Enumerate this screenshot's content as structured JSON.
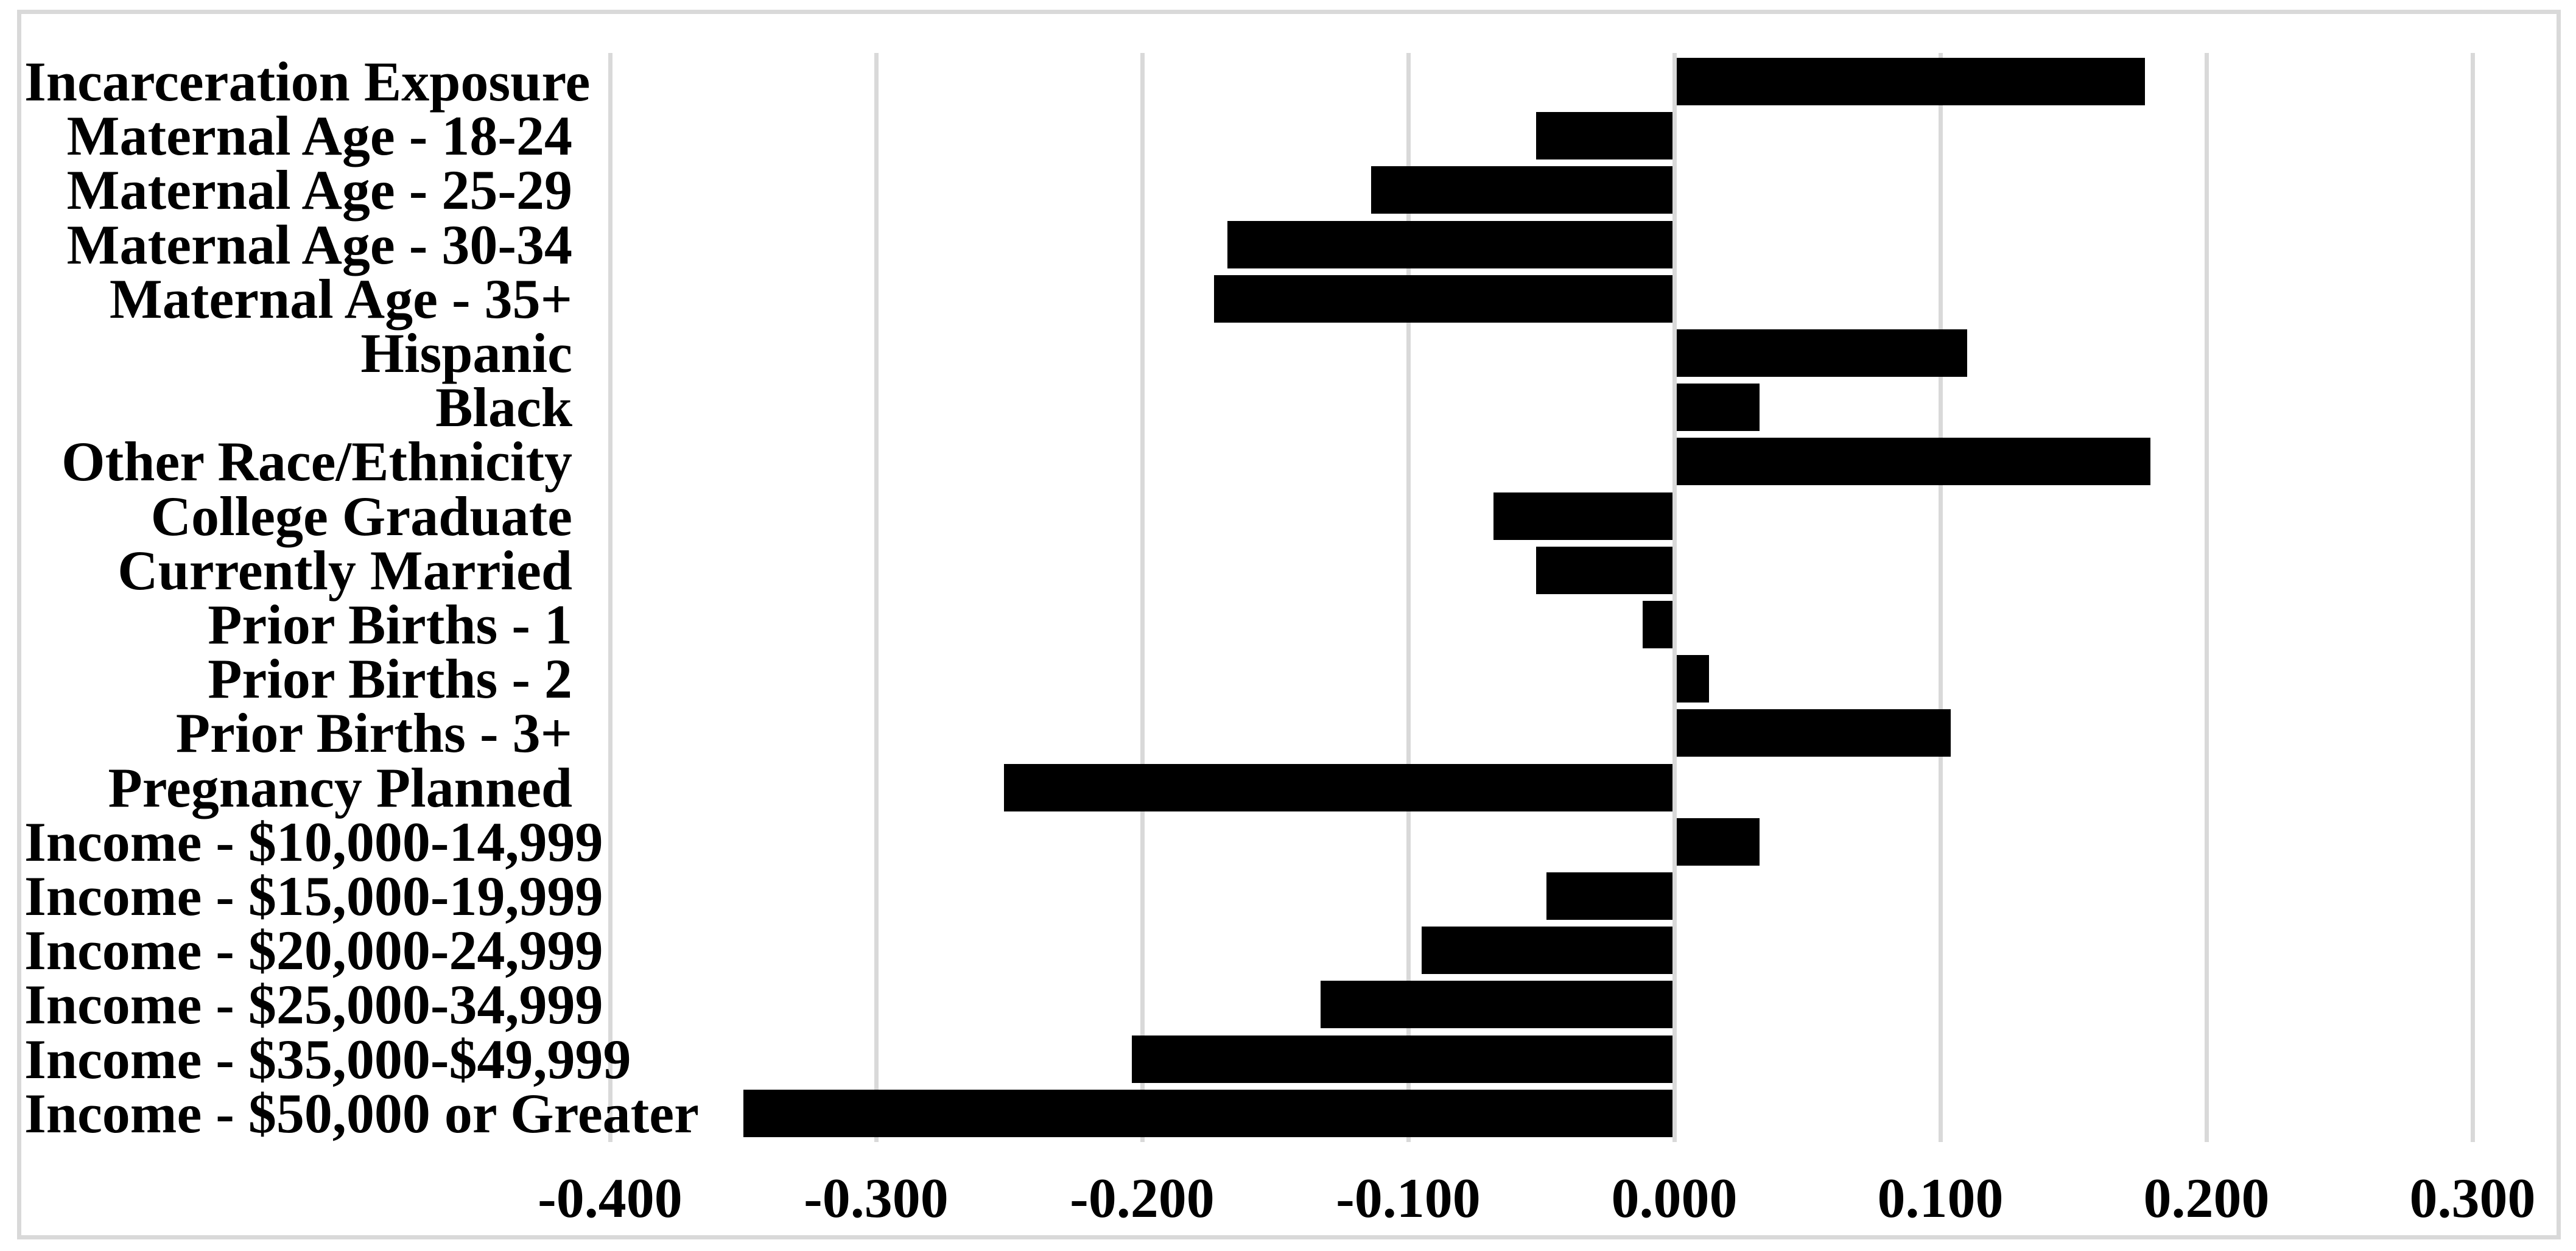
{
  "chart_data": {
    "type": "bar",
    "orientation": "horizontal",
    "title": "",
    "xlabel": "",
    "ylabel": "",
    "categories": [
      "Incarceration Exposure",
      "Maternal Age - 18-24",
      "Maternal Age - 25-29",
      "Maternal Age - 30-34",
      "Maternal Age - 35+",
      "Hispanic",
      "Black",
      "Other Race/Ethnicity",
      "College Graduate",
      "Currently Married",
      "Prior Births - 1",
      "Prior Births - 2",
      "Prior Births - 3+",
      "Pregnancy Planned",
      "Income - $10,000-14,999",
      "Income - $15,000-19,999",
      "Income - $20,000-24,999",
      "Income - $25,000-34,999",
      "Income - $35,000-$49,999",
      "Income - $50,000 or Greater"
    ],
    "values": [
      0.177,
      -0.052,
      -0.114,
      -0.168,
      -0.173,
      0.11,
      0.032,
      0.179,
      -0.068,
      -0.052,
      -0.012,
      0.013,
      0.104,
      -0.252,
      0.032,
      -0.048,
      -0.095,
      -0.133,
      -0.204,
      -0.35
    ],
    "xlim": [
      -0.4,
      0.3
    ],
    "x_tick_values": [
      -0.4,
      -0.3,
      -0.2,
      -0.1,
      0.0,
      0.1,
      0.2,
      0.3
    ],
    "x_tick_labels": [
      "-0.400",
      "-0.300",
      "-0.200",
      "-0.100",
      "0.000",
      "0.100",
      "0.200",
      "0.300"
    ],
    "grid": true,
    "legend": false,
    "colors": {
      "bar": "#000000",
      "gridline": "#d9d9d9",
      "zero_line": "#d9d9d9",
      "frame_border": "#d9d9d9",
      "background": "#ffffff",
      "text": "#000000"
    }
  }
}
